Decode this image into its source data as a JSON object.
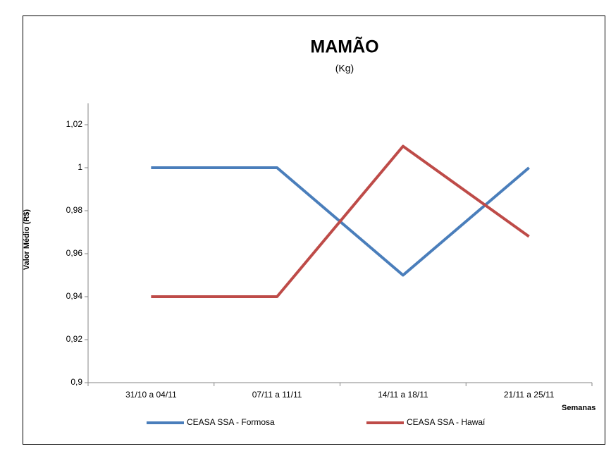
{
  "chart_data": {
    "type": "line",
    "title": "MAMÃO",
    "subtitle": "(Kg)",
    "y_label": "Valor Médio (R$)",
    "x_label": "Semanas",
    "categories": [
      "31/10 a 04/11",
      "07/11 a 11/11",
      "14/11 a 18/11",
      "21/11 a 25/11"
    ],
    "series": [
      {
        "name": "CEASA SSA - Formosa",
        "color": "#4a7ebb",
        "values": [
          1,
          1,
          0.95,
          1
        ]
      },
      {
        "name": "CEASA SSA - Hawaí",
        "color": "#be4b48",
        "values": [
          0.94,
          0.94,
          1.01,
          0.968
        ]
      }
    ],
    "ylim": [
      0.9,
      1.03
    ],
    "yticks": [
      {
        "value": 0.9,
        "label": "0,9"
      },
      {
        "value": 0.92,
        "label": "0,92"
      },
      {
        "value": 0.94,
        "label": "0,94"
      },
      {
        "value": 0.96,
        "label": "0,96"
      },
      {
        "value": 0.98,
        "label": "0,98"
      },
      1,
      {
        "value": 1.02,
        "label": "1,02"
      }
    ],
    "grid": false,
    "legend": "bottom"
  }
}
